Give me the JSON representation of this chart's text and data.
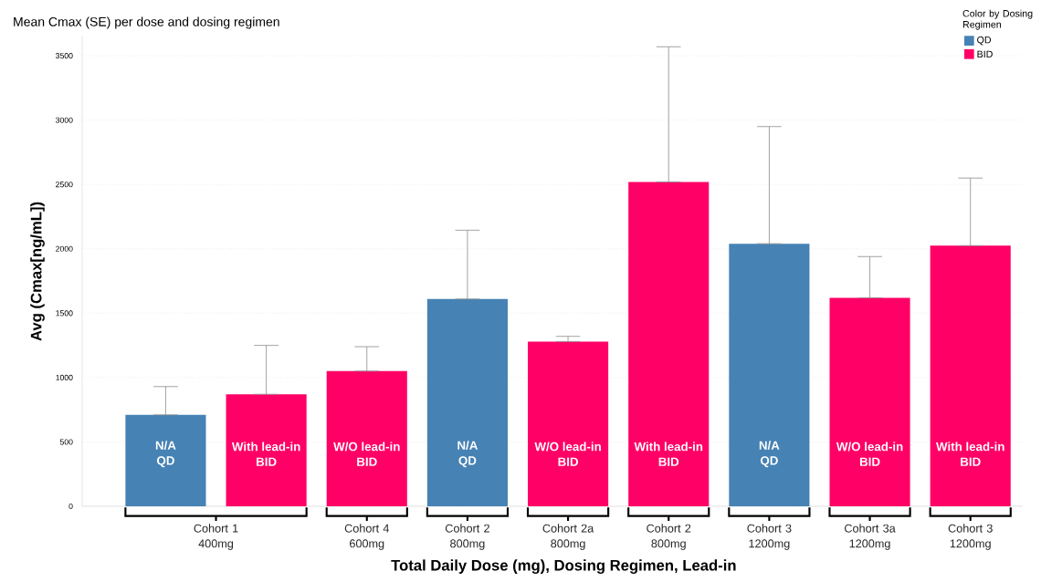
{
  "chart_data": {
    "type": "bar",
    "title": "Mean Cmax (SE) per dose and dosing regimen",
    "xlabel": "Total Daily Dose (mg), Dosing Regimen, Lead-in",
    "ylabel": "Avg (Cmax[ng/mL])",
    "legend_title": "Color by Dosing Regimen",
    "legend": "top right",
    "categories": [
      "N/A",
      "With lead-in",
      "W/O lead-in",
      "N/A",
      "W/O lead-in",
      "With lead-in",
      "N/A",
      "W/O lead-in",
      "With lead-in"
    ],
    "series": [
      {
        "name": "QD",
        "color": "#4682b4",
        "values": [
          710,
          null,
          null,
          1610,
          null,
          null,
          2040,
          null,
          null
        ],
        "errors": [
          [
            710,
            930
          ],
          null,
          null,
          [
            1610,
            2145
          ],
          null,
          null,
          [
            2040,
            2950
          ],
          null,
          null
        ]
      },
      {
        "name": "BID",
        "color": "#ff0066",
        "values": [
          null,
          870,
          1050,
          null,
          1280,
          2520,
          null,
          1620,
          2025
        ],
        "errors": [
          null,
          [
            870,
            1250
          ],
          [
            1050,
            1240
          ],
          null,
          [
            1280,
            1320
          ],
          [
            2520,
            3570
          ],
          null,
          [
            1620,
            1940
          ],
          [
            2025,
            2550
          ]
        ]
      }
    ],
    "annotations": [
      "Cohort 1 400mg",
      "Cohort 4 600mg",
      "Cohort 2 800mg",
      "Cohort 2a 800mg",
      "Cohort 2 800mg",
      "Cohort 3 1200mg",
      "Cohort 3a 1200mg",
      "Cohort 3 1200mg"
    ],
    "ylim": [
      0,
      3650
    ],
    "yticks": [
      0,
      500,
      1000,
      1500,
      2000,
      2500,
      3000,
      3500
    ],
    "grid": "y"
  }
}
